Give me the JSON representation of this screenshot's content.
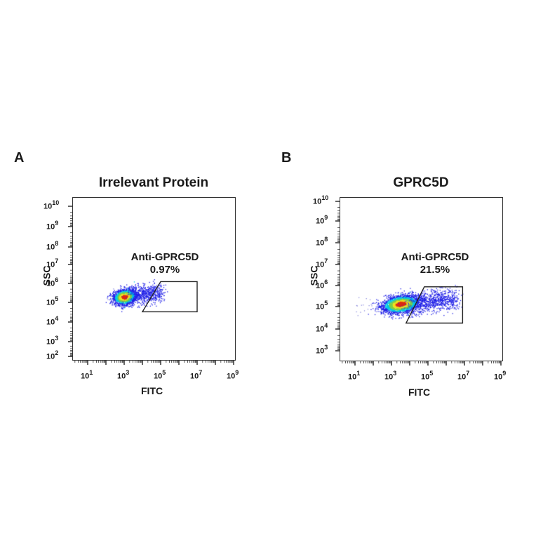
{
  "chart_data": [
    {
      "type": "scatter",
      "subtype": "flow-cytometry-density-dot-plot",
      "panel": "A",
      "title": "Irrelevant Protein",
      "xlabel": "FITC",
      "ylabel": "SSC",
      "xscale": "log",
      "yscale": "log",
      "xlim_exp": [
        0,
        9.2
      ],
      "ylim_exp": [
        1.7,
        10.5
      ],
      "x_tick_labels": [
        "10^1",
        "10^3",
        "10^5",
        "10^7",
        "10^9"
      ],
      "y_tick_labels": [
        "10^2",
        "10^3",
        "10^4",
        "10^5",
        "10^6",
        "10^7",
        "10^8",
        "10^9",
        "10^10"
      ],
      "population": {
        "center_log_fitc": 3.0,
        "center_log_ssc": 5.2,
        "spread_log_fitc": 0.55,
        "spread_log_ssc": 0.28,
        "tail_to_log_fitc": 5.0
      },
      "gate": {
        "name": "Anti-GPRC5D",
        "percent": "0.97%",
        "shape": "trapezoid",
        "vertices_log": [
          [
            5.0,
            6.0
          ],
          [
            7.0,
            6.0
          ],
          [
            7.0,
            4.4
          ],
          [
            4.0,
            4.4
          ]
        ]
      },
      "grid": false,
      "legend": null
    },
    {
      "type": "scatter",
      "subtype": "flow-cytometry-density-dot-plot",
      "panel": "B",
      "title": "GPRC5D",
      "xlabel": "FITC",
      "ylabel": "SSC",
      "xscale": "log",
      "yscale": "log",
      "xlim_exp": [
        0,
        9.2
      ],
      "ylim_exp": [
        2.5,
        10.2
      ],
      "x_tick_labels": [
        "10^1",
        "10^3",
        "10^5",
        "10^7",
        "10^9"
      ],
      "y_tick_labels": [
        "10^3",
        "10^4",
        "10^5",
        "10^6",
        "10^7",
        "10^8",
        "10^9",
        "10^10"
      ],
      "population": {
        "center_log_fitc": 3.5,
        "center_log_ssc": 5.2,
        "spread_log_fitc": 0.9,
        "spread_log_ssc": 0.28,
        "tail_to_log_fitc": 6.5
      },
      "gate": {
        "name": "Anti-GPRC5D",
        "percent": "21.5%",
        "shape": "trapezoid",
        "vertices_log": [
          [
            4.8,
            6.0
          ],
          [
            6.9,
            6.0
          ],
          [
            6.9,
            4.3
          ],
          [
            3.8,
            4.3
          ]
        ]
      },
      "grid": false,
      "legend": null
    }
  ],
  "panels": [
    {
      "letter": "A",
      "title": "Irrelevant Protein",
      "xlabel": "FITC",
      "ylabel": "SSC",
      "gate_name": "Anti-GPRC5D",
      "gate_percent": "0.97%",
      "x_ticks": [
        {
          "base": "10",
          "exp": "1"
        },
        {
          "base": "10",
          "exp": "3"
        },
        {
          "base": "10",
          "exp": "5"
        },
        {
          "base": "10",
          "exp": "7"
        },
        {
          "base": "10",
          "exp": "9"
        }
      ],
      "y_ticks": [
        {
          "base": "10",
          "exp": "10"
        },
        {
          "base": "10",
          "exp": "9"
        },
        {
          "base": "10",
          "exp": "8"
        },
        {
          "base": "10",
          "exp": "7"
        },
        {
          "base": "10",
          "exp": "6"
        },
        {
          "base": "10",
          "exp": "5"
        },
        {
          "base": "10",
          "exp": "4"
        },
        {
          "base": "10",
          "exp": "3"
        },
        {
          "base": "10",
          "exp": "2"
        }
      ]
    },
    {
      "letter": "B",
      "title": "GPRC5D",
      "xlabel": "FITC",
      "ylabel": "SSC",
      "gate_name": "Anti-GPRC5D",
      "gate_percent": "21.5%",
      "x_ticks": [
        {
          "base": "10",
          "exp": "1"
        },
        {
          "base": "10",
          "exp": "3"
        },
        {
          "base": "10",
          "exp": "5"
        },
        {
          "base": "10",
          "exp": "7"
        },
        {
          "base": "10",
          "exp": "9"
        }
      ],
      "y_ticks": [
        {
          "base": "10",
          "exp": "10"
        },
        {
          "base": "10",
          "exp": "9"
        },
        {
          "base": "10",
          "exp": "8"
        },
        {
          "base": "10",
          "exp": "7"
        },
        {
          "base": "10",
          "exp": "6"
        },
        {
          "base": "10",
          "exp": "5"
        },
        {
          "base": "10",
          "exp": "4"
        },
        {
          "base": "10",
          "exp": "3"
        }
      ]
    }
  ],
  "colors": {
    "axis": "#333333",
    "text": "#1a1a1a",
    "density_low": "#1e1ee6",
    "density_mid": "#00c8e6",
    "density_mid2": "#7ad04a",
    "density_high": "#f0e020",
    "density_peak": "#e02a10"
  }
}
